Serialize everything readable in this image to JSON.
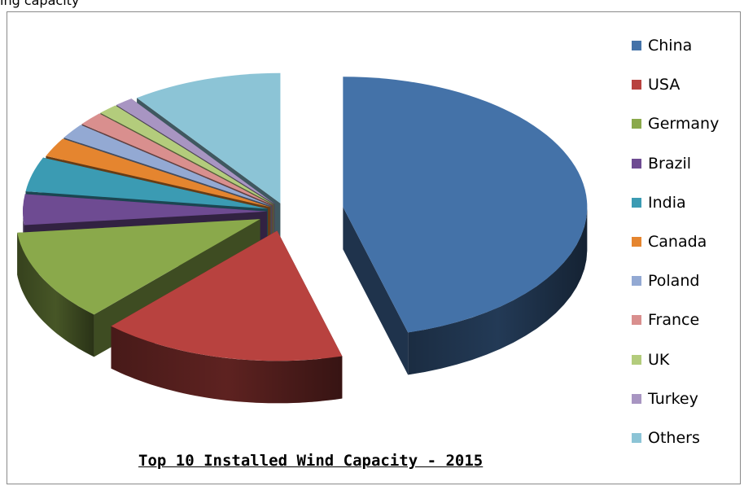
{
  "top_text": "ing capacity",
  "chart_data": {
    "type": "pie",
    "title": "Top 10 Installed Wind Capacity - 2015",
    "legend_position": "right",
    "categories": [
      "China",
      "USA",
      "Germany",
      "Brazil",
      "India",
      "Canada",
      "Poland",
      "France",
      "UK",
      "Turkey",
      "Others"
    ],
    "values": [
      48.0,
      17.0,
      12.0,
      4.0,
      4.5,
      2.5,
      2.0,
      1.8,
      1.4,
      1.3,
      10.5
    ],
    "colors": [
      "#4472a8",
      "#b8423f",
      "#8aa94b",
      "#6e4b92",
      "#3b9bb3",
      "#e5852f",
      "#93a9d3",
      "#d98f8e",
      "#b3cc7c",
      "#a895c2",
      "#8cc4d6"
    ]
  }
}
